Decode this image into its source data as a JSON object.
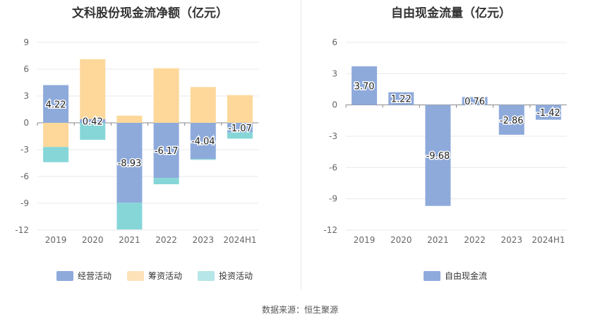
{
  "source": "数据来源：恒生聚源",
  "chart_data": [
    {
      "type": "bar",
      "stacked": true,
      "title": "文科股份现金流净额（亿元）",
      "categories": [
        "2019",
        "2020",
        "2021",
        "2022",
        "2023",
        "2024H1"
      ],
      "ylim": [
        -12,
        9
      ],
      "yticks": [
        9,
        6,
        3,
        0,
        -3,
        -6,
        -9,
        -12
      ],
      "series": [
        {
          "name": "经营活动",
          "color": "#8eaadb",
          "values": [
            4.22,
            0.42,
            -8.93,
            -6.17,
            -4.04,
            -1.07
          ]
        },
        {
          "name": "筹资活动",
          "color": "#fdd89a",
          "values": [
            -2.7,
            6.7,
            0.8,
            6.1,
            4.0,
            3.1
          ]
        },
        {
          "name": "投资活动",
          "color": "#86d6d8",
          "values": [
            -1.7,
            -1.9,
            -3.0,
            -0.7,
            -0.1,
            -0.7
          ]
        }
      ],
      "data_labels": [
        "4.22",
        "0.42",
        "-8.93",
        "-6.17",
        "-4.04",
        "-1.07"
      ],
      "legend": [
        {
          "name": "经营活动",
          "color": "#8eaadb"
        },
        {
          "name": "筹资活动",
          "color": "#fde2b8"
        },
        {
          "name": "投资活动",
          "color": "#b6e6e8"
        }
      ]
    },
    {
      "type": "bar",
      "title": "自由现金流量（亿元）",
      "categories": [
        "2019",
        "2020",
        "2021",
        "2022",
        "2023",
        "2024H1"
      ],
      "ylim": [
        -12,
        6
      ],
      "yticks": [
        6,
        3,
        0,
        -3,
        -6,
        -9,
        -12
      ],
      "series": [
        {
          "name": "自由现金流",
          "color": "#8eaadb",
          "values": [
            3.7,
            1.22,
            -9.68,
            0.76,
            -2.86,
            -1.42
          ]
        }
      ],
      "data_labels": [
        "3.70",
        "1.22",
        "-9.68",
        "0.76",
        "-2.86",
        "-1.42"
      ],
      "legend": [
        {
          "name": "自由现金流",
          "color": "#8eaadb"
        }
      ]
    }
  ]
}
